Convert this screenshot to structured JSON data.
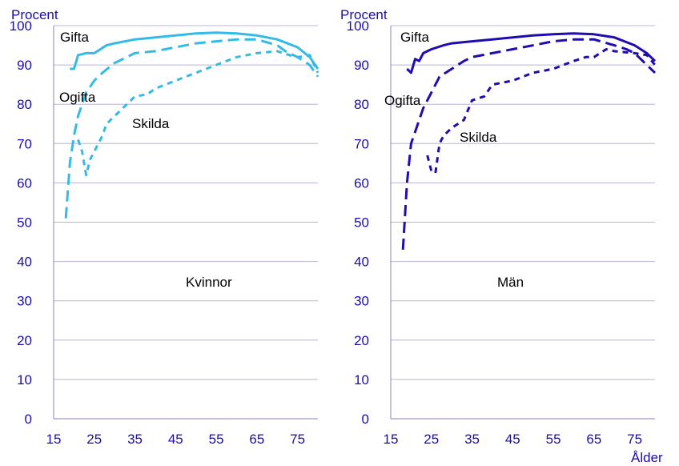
{
  "chart_data": [
    {
      "type": "line",
      "panel_label": "Kvinnor",
      "ylabel": "Procent",
      "xlabel": "",
      "ylim": [
        0,
        100
      ],
      "xlim": [
        15,
        80
      ],
      "x_ticks": [
        "15",
        "25",
        "35",
        "45",
        "55",
        "65",
        "75"
      ],
      "y_ticks": [
        "0",
        "10",
        "20",
        "30",
        "40",
        "50",
        "60",
        "70",
        "80",
        "90",
        "100"
      ],
      "grid": "horizontal",
      "color": "#33BBE6",
      "axis_color": "#1A0DAB",
      "series": [
        {
          "name": "Gifta",
          "style": "solid",
          "x": [
            19,
            20,
            21,
            23,
            25,
            28,
            30,
            35,
            40,
            45,
            50,
            55,
            60,
            65,
            70,
            75,
            78,
            80
          ],
          "y": [
            89,
            89,
            92.5,
            93,
            93,
            95,
            95.5,
            96.5,
            97,
            97.5,
            98,
            98.2,
            98,
            97.5,
            96.5,
            94.5,
            92,
            89
          ]
        },
        {
          "name": "Ogifta",
          "style": "dashed",
          "x": [
            18,
            19,
            20,
            21,
            22,
            23,
            25,
            27,
            30,
            33,
            35,
            40,
            45,
            50,
            55,
            60,
            65,
            70,
            72,
            75,
            78,
            80
          ],
          "y": [
            51,
            65,
            72,
            77,
            80,
            83,
            86,
            88,
            90.5,
            92,
            93,
            93.5,
            94.5,
            95.5,
            96,
            96.5,
            96.5,
            95,
            93.5,
            92,
            90,
            87
          ]
        },
        {
          "name": "Skilda",
          "style": "dotted-dashed",
          "x": [
            21,
            22,
            23,
            24,
            25,
            27,
            28,
            30,
            33,
            35,
            38,
            40,
            45,
            50,
            55,
            60,
            65,
            70,
            73,
            75,
            78,
            80
          ],
          "y": [
            71,
            68,
            62,
            66,
            68,
            72,
            75,
            77,
            80,
            82,
            82.5,
            84,
            86,
            88,
            90,
            92,
            93,
            93.5,
            92.5,
            92,
            92.5,
            88
          ]
        }
      ]
    },
    {
      "type": "line",
      "panel_label": "Män",
      "ylabel": "Procent",
      "xlabel": "Ålder",
      "ylim": [
        0,
        100
      ],
      "xlim": [
        15,
        80
      ],
      "x_ticks": [
        "15",
        "25",
        "35",
        "45",
        "55",
        "65",
        "75"
      ],
      "y_ticks": [
        "0",
        "10",
        "20",
        "30",
        "40",
        "50",
        "60",
        "70",
        "80",
        "90",
        "100"
      ],
      "grid": "horizontal",
      "color": "#1F0DB0",
      "axis_color": "#1A0DAB",
      "series": [
        {
          "name": "Gifta",
          "style": "solid",
          "x": [
            19,
            20,
            21,
            22,
            23,
            25,
            28,
            30,
            35,
            40,
            45,
            50,
            55,
            60,
            65,
            70,
            75,
            78,
            80
          ],
          "y": [
            89,
            88,
            91.5,
            91,
            93,
            94,
            95,
            95.5,
            96,
            96.5,
            97,
            97.5,
            97.8,
            98,
            97.8,
            97,
            95,
            93,
            91
          ]
        },
        {
          "name": "Ogifta",
          "style": "dashed",
          "x": [
            18,
            19,
            20,
            21,
            22,
            23,
            25,
            27,
            30,
            33,
            35,
            40,
            45,
            50,
            55,
            60,
            65,
            70,
            73,
            75,
            78,
            80
          ],
          "y": [
            43,
            60,
            70,
            73,
            76,
            79,
            83,
            87,
            89,
            91,
            92,
            93,
            94,
            95,
            96,
            96.5,
            96.5,
            95,
            94,
            93,
            90,
            88
          ]
        },
        {
          "name": "Skilda",
          "style": "dotted-dashed",
          "x": [
            24,
            25,
            26,
            27,
            28,
            30,
            33,
            35,
            38,
            40,
            45,
            50,
            55,
            60,
            63,
            65,
            68,
            70,
            75,
            78,
            80
          ],
          "y": [
            67,
            63,
            62.5,
            70,
            72,
            74,
            76,
            81,
            82,
            85,
            86,
            88,
            89,
            91,
            92,
            92,
            94,
            93.5,
            93,
            92.5,
            90
          ]
        }
      ]
    }
  ]
}
